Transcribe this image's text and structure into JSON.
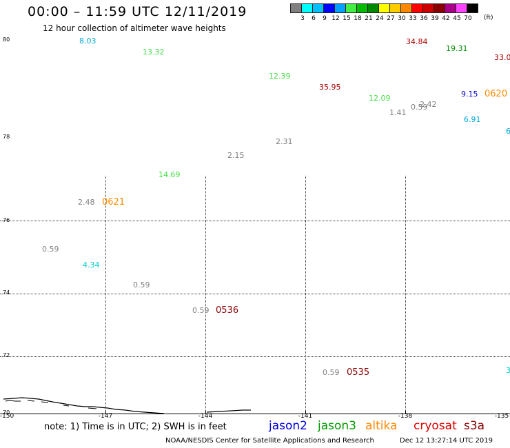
{
  "header": {
    "title": "00:00 – 11:59 UTC 12/11/2019",
    "subtitle": "12 hour collection of altimeter wave heights"
  },
  "legend": {
    "unit": "(ft)",
    "bins": [
      {
        "label": "",
        "color": "#808080"
      },
      {
        "label": "3",
        "color": "#00ffff"
      },
      {
        "label": "6",
        "color": "#00c0ff"
      },
      {
        "label": "9",
        "color": "#0000ff"
      },
      {
        "label": "12",
        "color": "#00a0ff"
      },
      {
        "label": "15",
        "color": "#44ee44"
      },
      {
        "label": "18",
        "color": "#00bb00"
      },
      {
        "label": "21",
        "color": "#008800"
      },
      {
        "label": "24",
        "color": "#ffff00"
      },
      {
        "label": "27",
        "color": "#ffcc00"
      },
      {
        "label": "30",
        "color": "#ff8800"
      },
      {
        "label": "33",
        "color": "#ff0000"
      },
      {
        "label": "36",
        "color": "#cc0000"
      },
      {
        "label": "39",
        "color": "#880000"
      },
      {
        "label": "42",
        "color": "#aa0088"
      },
      {
        "label": "45",
        "color": "#ff44ff"
      },
      {
        "label": "70",
        "color": "#000000"
      }
    ]
  },
  "axes": {
    "lat_labels": [
      "80",
      "78",
      "76",
      "74",
      "72",
      "70"
    ],
    "lon_labels": [
      "-150",
      "-147",
      "-144",
      "-141",
      "-138",
      "-135"
    ]
  },
  "observations": [
    {
      "text": "8.03",
      "color": "#00a8d8"
    },
    {
      "text": "13.32",
      "color": "#44dd44"
    },
    {
      "text": "34.84",
      "color": "#aa0000"
    },
    {
      "text": "19.31",
      "color": "#008800"
    },
    {
      "text": "33.0",
      "color": "#aa0000"
    },
    {
      "text": "12.39",
      "color": "#44dd44"
    },
    {
      "text": "35.95",
      "color": "#aa0000"
    },
    {
      "text": "12.09",
      "color": "#44dd44"
    },
    {
      "text": "1.41",
      "color": "#808080"
    },
    {
      "text": "0.59",
      "color": "#808080"
    },
    {
      "text": "2.42",
      "color": "#808080"
    },
    {
      "text": "9.15",
      "color": "#0000cc"
    },
    {
      "text": "6.91",
      "color": "#00a8d8"
    },
    {
      "text": "6",
      "color": "#00a8d8"
    },
    {
      "text": "2.31",
      "color": "#808080"
    },
    {
      "text": "2.15",
      "color": "#808080"
    },
    {
      "text": "14.69",
      "color": "#44dd44"
    },
    {
      "text": "2.48",
      "color": "#808080"
    },
    {
      "text": "0.59",
      "color": "#808080"
    },
    {
      "text": "4.34",
      "color": "#00cccc"
    },
    {
      "text": "0.59",
      "color": "#808080"
    },
    {
      "text": "0.59",
      "color": "#808080"
    },
    {
      "text": "0.59",
      "color": "#808080"
    },
    {
      "text": "3",
      "color": "#00cccc"
    }
  ],
  "pass_times": [
    {
      "text": "0620",
      "color": "#ff8800"
    },
    {
      "text": "0621",
      "color": "#ff8800"
    },
    {
      "text": "0536",
      "color": "#880000"
    },
    {
      "text": "0535",
      "color": "#880000"
    }
  ],
  "note": "note: 1) Time is in UTC; 2) SWH is in feet",
  "satellites": [
    {
      "name": "jason2",
      "color": "#0000dd"
    },
    {
      "name": "jason3",
      "color": "#009900"
    },
    {
      "name": "altika",
      "color": "#ff8800"
    },
    {
      "name": "cryosat",
      "color": "#dd0000"
    },
    {
      "name": "s3a",
      "color": "#880000"
    }
  ],
  "footer": {
    "credit": "NOAA/NESDIS Center for Satellite Applications and Research",
    "timestamp": "Dec 12 13:27:14 UTC 2019"
  }
}
